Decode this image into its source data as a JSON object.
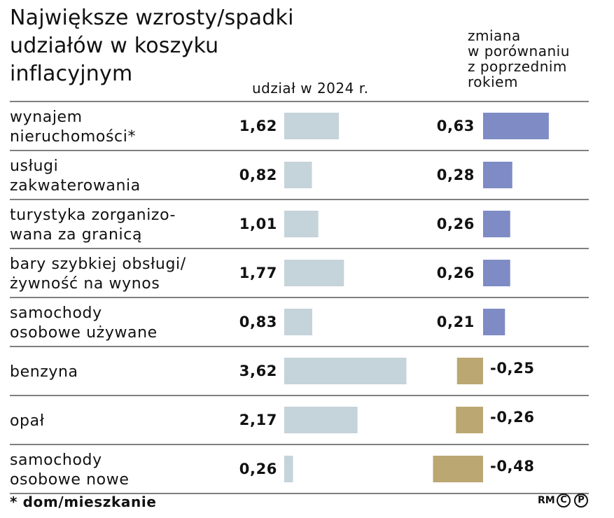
{
  "title": "Największe wzrosty/spadki\nudziałów w koszyku\ninflacyjnym",
  "share_header": "udział w 2024 r.",
  "change_header": "zmiana\nw porównaniu\nz poprzednim\nrokiem",
  "footnote": "* dom/mieszkanie",
  "credit": "RM",
  "colors": {
    "share_bar": "#c5d3da",
    "positive_bar": "#7e8bc5",
    "negative_bar": "#baa771",
    "rule": "#333333"
  },
  "chart_data": {
    "type": "bar",
    "categories": [
      "wynajem\nnieruchomości*",
      "usługi\nzakwaterowania",
      "turystyka zorganizo-\nwana za granicą",
      "bary szybkiej obsługi/\nżywność na wynos",
      "samochody\nosobowe używane",
      "benzyna",
      "opał",
      "samochody\nosobowe nowe"
    ],
    "series": [
      {
        "name": "udział w 2024 r.",
        "values": [
          1.62,
          0.82,
          1.01,
          1.77,
          0.83,
          3.62,
          2.17,
          0.26
        ],
        "labels": [
          "1,62",
          "0,82",
          "1,01",
          "1,77",
          "0,83",
          "3,62",
          "2,17",
          "0,26"
        ]
      },
      {
        "name": "zmiana w porównaniu z poprzednim rokiem",
        "values": [
          0.63,
          0.28,
          0.26,
          0.26,
          0.21,
          -0.25,
          -0.26,
          -0.48
        ],
        "labels": [
          "0,63",
          "0,28",
          "0,26",
          "0,26",
          "0,21",
          "-0,25",
          "-0,26",
          "-0,48"
        ]
      }
    ]
  }
}
